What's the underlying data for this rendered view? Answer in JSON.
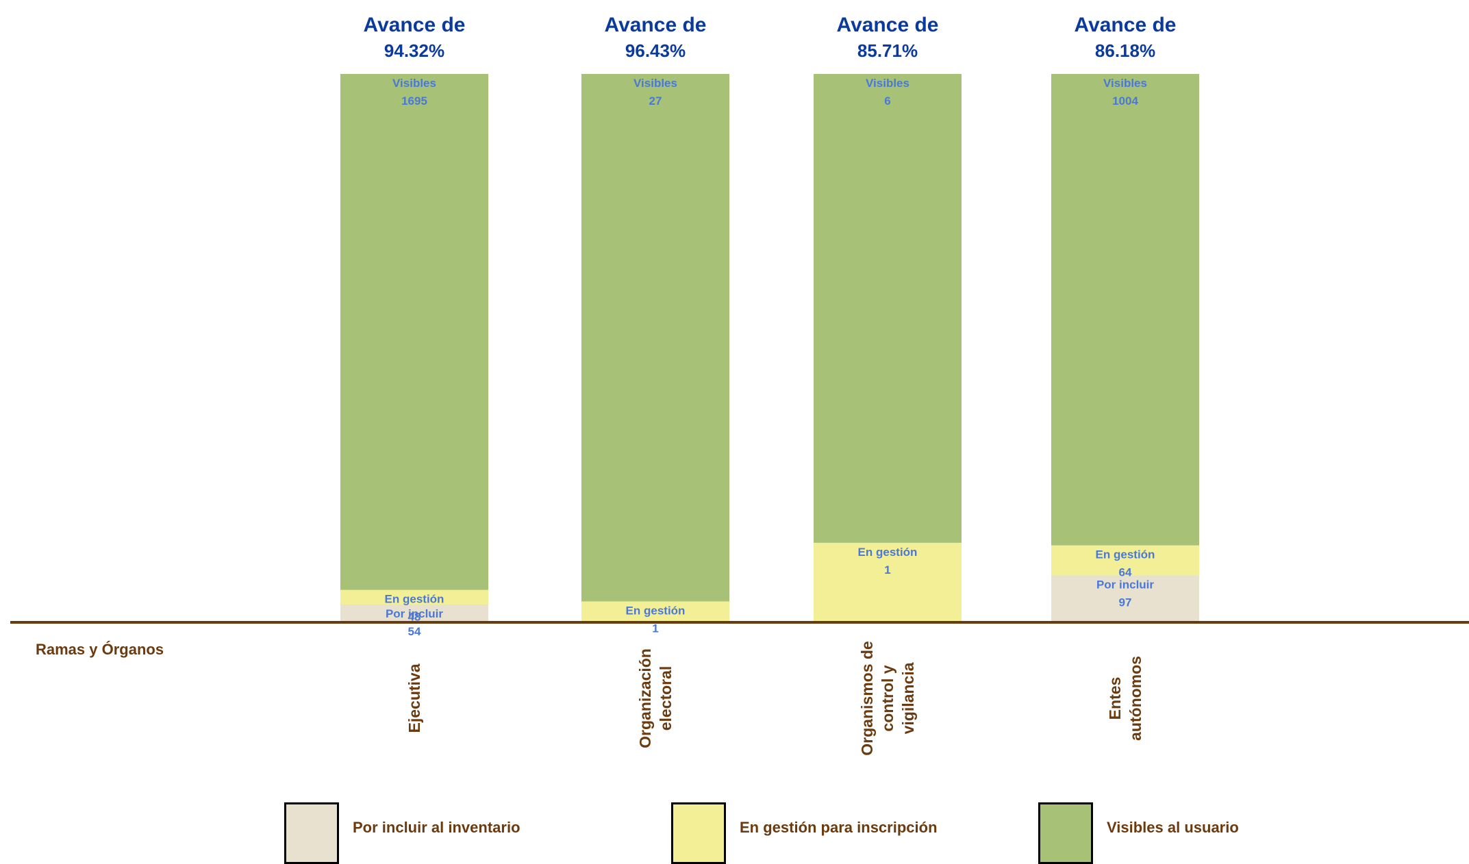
{
  "chart_data": {
    "type": "bar",
    "stacked": true,
    "xlabel": "Ramas y Órganos",
    "categories": [
      "Ejecutiva",
      "Organización electoral",
      "Organismos de control y vigilancia",
      "Entes autónomos"
    ],
    "category_lines": [
      [
        "Ejecutiva"
      ],
      [
        "Organización",
        "electoral"
      ],
      [
        "Organismos de",
        "control y",
        "vigilancia"
      ],
      [
        "Entes",
        "autónomos"
      ]
    ],
    "headline_prefix": "Avance de",
    "headlines": [
      "94.32%",
      "96.43%",
      "85.71%",
      "86.18%"
    ],
    "series": [
      {
        "name": "Por incluir al inventario",
        "short": "Por incluir",
        "values": [
          54,
          0,
          0,
          97
        ],
        "color": "#e9e1d0"
      },
      {
        "name": "En gestión para inscripción",
        "short": "En gestión",
        "values": [
          48,
          1,
          1,
          64
        ],
        "color": "#f2ef96"
      },
      {
        "name": "Visibles al usuario",
        "short": "Visibles",
        "values": [
          1695,
          27,
          6,
          1004
        ],
        "color": "#a7c277"
      }
    ],
    "grid": false,
    "legend_position": "bottom"
  },
  "colors": {
    "headline": "#0b3a9e",
    "segment_label": "#4a78d6",
    "axis": "#6b3a0e",
    "category_text": "#6b3a0e"
  }
}
